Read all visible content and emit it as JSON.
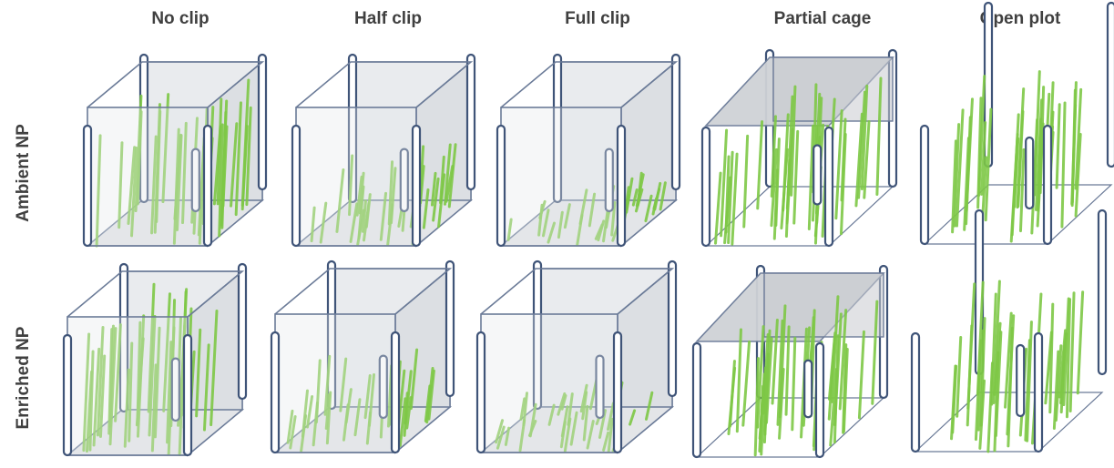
{
  "columns": [
    {
      "label": "No clip",
      "type": "full-cage",
      "grass_extent": "full"
    },
    {
      "label": "Half clip",
      "type": "full-cage",
      "grass_extent": "half"
    },
    {
      "label": "Full clip",
      "type": "full-cage",
      "grass_extent": "short"
    },
    {
      "label": "Partial cage",
      "type": "partial-cage",
      "grass_extent": "full"
    },
    {
      "label": "Open plot",
      "type": "open-plot",
      "grass_extent": "full"
    }
  ],
  "rows": [
    {
      "label": "Ambient NP"
    },
    {
      "label": "Enriched NP"
    }
  ],
  "colors": {
    "grass": "#7ec846",
    "frame": "#6b7b98",
    "post": "#3f5478",
    "wall_fill": "#e9ebee",
    "side_fill": "#dcdfe3",
    "roof_fill": "#cfd2d6",
    "label": "#404040"
  }
}
